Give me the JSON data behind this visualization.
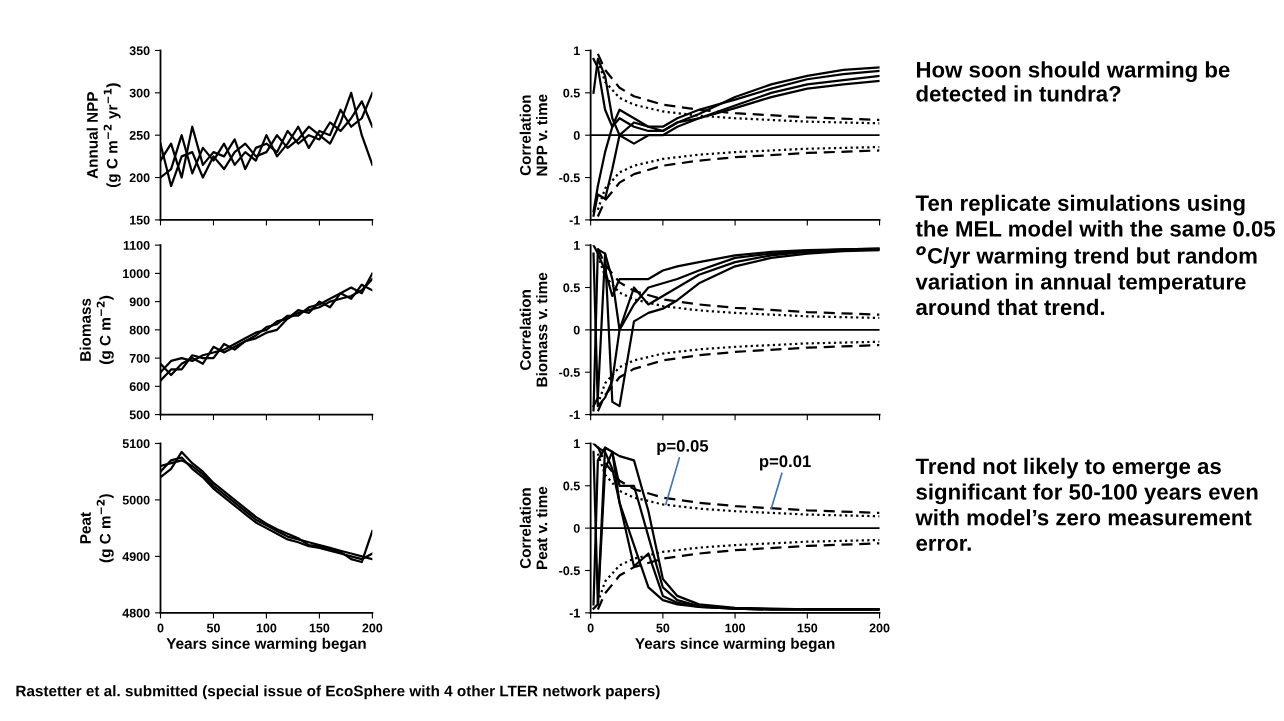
{
  "chart_data": [
    {
      "type": "line",
      "ylabel": "Annual NPP\n(g C m$^{−2}$ yr$^{−1}$)",
      "xlim": [
        0,
        200
      ],
      "xticks": [
        0,
        50,
        100,
        150,
        200
      ],
      "ylim": [
        150,
        350
      ],
      "yticks": [
        150,
        200,
        250,
        300,
        350
      ],
      "tick_labels": "y",
      "grid": false,
      "legend": false,
      "marker": "none",
      "series": [
        {
          "color": "#000000",
          "x": [
            0,
            10,
            20,
            30,
            40,
            50,
            60,
            70,
            80,
            90,
            100,
            110,
            120,
            130,
            140,
            150,
            160,
            170,
            180,
            190,
            200
          ],
          "values": [
            220,
            240,
            200,
            260,
            215,
            230,
            225,
            245,
            210,
            235,
            240,
            230,
            255,
            240,
            250,
            245,
            265,
            255,
            270,
            290,
            260
          ]
        },
        {
          "color": "#000000",
          "x": [
            0,
            10,
            20,
            30,
            40,
            50,
            60,
            70,
            80,
            90,
            100,
            110,
            120,
            130,
            140,
            150,
            160,
            170,
            180,
            190,
            200
          ],
          "values": [
            200,
            210,
            250,
            205,
            235,
            220,
            240,
            215,
            230,
            220,
            250,
            225,
            240,
            260,
            235,
            255,
            250,
            280,
            260,
            270,
            300
          ]
        },
        {
          "color": "#000000",
          "x": [
            0,
            10,
            20,
            30,
            40,
            50,
            60,
            70,
            80,
            90,
            100,
            110,
            120,
            130,
            140,
            150,
            160,
            170,
            180,
            190,
            200
          ],
          "values": [
            240,
            190,
            225,
            230,
            200,
            225,
            210,
            230,
            240,
            225,
            230,
            250,
            235,
            245,
            260,
            250,
            240,
            265,
            300,
            250,
            215
          ]
        }
      ]
    },
    {
      "type": "line",
      "ylabel": "Correlation\nNPP v. time",
      "ref_lines": [
        {
          "axis": "y",
          "value": 0,
          "color": "#000000"
        }
      ],
      "xlim": [
        0,
        200
      ],
      "xticks": [
        0,
        50,
        100,
        150,
        200
      ],
      "ylim": [
        -1,
        1
      ],
      "yticks": [
        -1,
        -0.5,
        0,
        0.5,
        1
      ],
      "tick_labels": "y",
      "grid": false,
      "legend": false,
      "marker": "none",
      "series": [
        {
          "color": "#000000",
          "x": [
            2,
            5,
            10,
            15,
            20,
            30,
            40,
            50,
            60,
            75,
            100,
            125,
            150,
            175,
            200
          ],
          "values": [
            0.9,
            0.8,
            0.3,
            0.1,
            0.2,
            0.1,
            0.05,
            0.05,
            0.15,
            0.25,
            0.45,
            0.6,
            0.7,
            0.77,
            0.8
          ]
        },
        {
          "color": "#000000",
          "x": [
            2,
            5,
            10,
            15,
            20,
            30,
            40,
            50,
            60,
            75,
            100,
            125,
            150,
            175,
            200
          ],
          "values": [
            -0.9,
            -0.6,
            -0.2,
            0.1,
            0.3,
            0.2,
            0.1,
            0.1,
            0.2,
            0.3,
            0.42,
            0.55,
            0.66,
            0.72,
            0.76
          ]
        },
        {
          "color": "#000000",
          "x": [
            2,
            5,
            10,
            15,
            20,
            30,
            40,
            50,
            60,
            75,
            100,
            125,
            150,
            175,
            200
          ],
          "values": [
            0.5,
            0.9,
            0.7,
            0.2,
            0.0,
            -0.1,
            0.0,
            0.0,
            0.1,
            0.2,
            0.35,
            0.5,
            0.6,
            0.65,
            0.7
          ]
        },
        {
          "color": "#000000",
          "x": [
            2,
            5,
            10,
            15,
            20,
            30,
            40,
            50,
            60,
            75,
            100,
            125,
            150,
            175,
            200
          ],
          "values": [
            -0.95,
            -0.7,
            -0.75,
            -0.4,
            0.0,
            0.15,
            0.1,
            0.05,
            0.15,
            0.2,
            0.32,
            0.45,
            0.55,
            0.6,
            0.64
          ]
        },
        {
          "color": "#000000",
          "line_style": "dotted",
          "x": [
            5,
            10,
            20,
            30,
            50,
            75,
            100,
            150,
            200
          ],
          "values": [
            0.88,
            0.63,
            0.44,
            0.36,
            0.28,
            0.23,
            0.2,
            0.16,
            0.14
          ]
        },
        {
          "color": "#000000",
          "line_style": "dashed",
          "x": [
            5,
            10,
            20,
            30,
            50,
            75,
            100,
            150,
            200
          ],
          "values": [
            0.96,
            0.77,
            0.56,
            0.46,
            0.36,
            0.3,
            0.26,
            0.21,
            0.18
          ]
        },
        {
          "color": "#000000",
          "line_style": "dotted",
          "x": [
            5,
            10,
            20,
            30,
            50,
            75,
            100,
            150,
            200
          ],
          "values": [
            -0.88,
            -0.63,
            -0.44,
            -0.36,
            -0.28,
            -0.23,
            -0.2,
            -0.16,
            -0.14
          ]
        },
        {
          "color": "#000000",
          "line_style": "dashed",
          "x": [
            5,
            10,
            20,
            30,
            50,
            75,
            100,
            150,
            200
          ],
          "values": [
            -0.96,
            -0.77,
            -0.56,
            -0.46,
            -0.36,
            -0.3,
            -0.26,
            -0.21,
            -0.18
          ]
        }
      ]
    },
    {
      "type": "line",
      "ylabel": "Biomass\n(g C m$^{−2}$)",
      "xlim": [
        0,
        200
      ],
      "xticks": [
        0,
        50,
        100,
        150,
        200
      ],
      "ylim": [
        500,
        1100
      ],
      "yticks": [
        500,
        600,
        700,
        800,
        900,
        1000,
        1100
      ],
      "tick_labels": "y",
      "grid": false,
      "legend": false,
      "marker": "none",
      "series": [
        {
          "color": "#000000",
          "x": [
            0,
            10,
            20,
            30,
            40,
            50,
            60,
            70,
            80,
            90,
            100,
            110,
            120,
            130,
            140,
            150,
            160,
            170,
            180,
            190,
            200
          ],
          "values": [
            650,
            690,
            700,
            690,
            710,
            720,
            730,
            750,
            770,
            790,
            800,
            830,
            840,
            860,
            870,
            880,
            900,
            910,
            920,
            940,
            980
          ]
        },
        {
          "color": "#000000",
          "x": [
            0,
            10,
            20,
            30,
            40,
            50,
            60,
            70,
            80,
            90,
            100,
            110,
            120,
            130,
            140,
            150,
            160,
            170,
            180,
            190,
            200
          ],
          "values": [
            680,
            640,
            680,
            700,
            680,
            740,
            720,
            740,
            760,
            780,
            810,
            820,
            850,
            850,
            880,
            890,
            910,
            930,
            950,
            930,
            1000
          ]
        },
        {
          "color": "#000000",
          "x": [
            0,
            10,
            20,
            30,
            40,
            50,
            60,
            70,
            80,
            90,
            100,
            110,
            120,
            130,
            140,
            150,
            160,
            170,
            180,
            190,
            200
          ],
          "values": [
            620,
            660,
            660,
            710,
            700,
            700,
            750,
            730,
            760,
            770,
            790,
            800,
            840,
            870,
            860,
            900,
            880,
            930,
            910,
            960,
            940
          ]
        }
      ]
    },
    {
      "type": "line",
      "ylabel": "Correlation\nBiomass v. time",
      "ref_lines": [
        {
          "axis": "y",
          "value": 0,
          "color": "#000000"
        }
      ],
      "xlim": [
        0,
        200
      ],
      "xticks": [
        0,
        50,
        100,
        150,
        200
      ],
      "ylim": [
        -1,
        1
      ],
      "yticks": [
        -1,
        -0.5,
        0,
        0.5,
        1
      ],
      "tick_labels": "y",
      "grid": false,
      "legend": false,
      "marker": "none",
      "series": [
        {
          "color": "#000000",
          "x": [
            2,
            5,
            10,
            15,
            20,
            30,
            40,
            50,
            60,
            75,
            100,
            125,
            150,
            175,
            200
          ],
          "values": [
            1.0,
            0.9,
            0.7,
            0.4,
            0.6,
            0.6,
            0.6,
            0.7,
            0.75,
            0.8,
            0.88,
            0.92,
            0.94,
            0.95,
            0.96
          ]
        },
        {
          "color": "#000000",
          "x": [
            2,
            5,
            10,
            15,
            20,
            30,
            40,
            50,
            60,
            75,
            100,
            125,
            150,
            175,
            200
          ],
          "values": [
            -0.9,
            -0.8,
            0.9,
            0.6,
            0.0,
            0.3,
            0.5,
            0.55,
            0.6,
            0.7,
            0.85,
            0.9,
            0.93,
            0.95,
            0.96
          ]
        },
        {
          "color": "#000000",
          "x": [
            2,
            5,
            10,
            15,
            20,
            30,
            40,
            50,
            60,
            75,
            100,
            125,
            150,
            175,
            200
          ],
          "values": [
            0.9,
            -0.9,
            -0.8,
            -0.6,
            0.0,
            0.5,
            0.3,
            0.4,
            0.5,
            0.65,
            0.8,
            0.88,
            0.92,
            0.94,
            0.95
          ]
        },
        {
          "color": "#000000",
          "x": [
            2,
            5,
            10,
            15,
            20,
            30,
            40,
            50,
            60,
            75,
            100,
            125,
            150,
            175,
            200
          ],
          "values": [
            -0.95,
            0.95,
            0.9,
            -0.85,
            -0.9,
            0.1,
            0.2,
            0.25,
            0.35,
            0.55,
            0.75,
            0.85,
            0.9,
            0.93,
            0.94
          ]
        },
        {
          "color": "#000000",
          "line_style": "dotted",
          "x": [
            5,
            10,
            20,
            30,
            50,
            75,
            100,
            150,
            200
          ],
          "values": [
            0.88,
            0.63,
            0.44,
            0.36,
            0.28,
            0.23,
            0.2,
            0.16,
            0.14
          ]
        },
        {
          "color": "#000000",
          "line_style": "dashed",
          "x": [
            5,
            10,
            20,
            30,
            50,
            75,
            100,
            150,
            200
          ],
          "values": [
            0.96,
            0.77,
            0.56,
            0.46,
            0.36,
            0.3,
            0.26,
            0.21,
            0.18
          ]
        },
        {
          "color": "#000000",
          "line_style": "dotted",
          "x": [
            5,
            10,
            20,
            30,
            50,
            75,
            100,
            150,
            200
          ],
          "values": [
            -0.88,
            -0.63,
            -0.44,
            -0.36,
            -0.28,
            -0.23,
            -0.2,
            -0.16,
            -0.14
          ]
        },
        {
          "color": "#000000",
          "line_style": "dashed",
          "x": [
            5,
            10,
            20,
            30,
            50,
            75,
            100,
            150,
            200
          ],
          "values": [
            -0.96,
            -0.77,
            -0.56,
            -0.46,
            -0.36,
            -0.3,
            -0.26,
            -0.21,
            -0.18
          ]
        }
      ]
    },
    {
      "type": "line",
      "ylabel": "Peat\n(g C m$^{−2}$)",
      "xlabel": "Years since warming began",
      "xlim": [
        0,
        200
      ],
      "xticks": [
        0,
        50,
        100,
        150,
        200
      ],
      "ylim": [
        4800,
        5100
      ],
      "yticks": [
        4800,
        4900,
        5000,
        5100
      ],
      "grid": false,
      "legend": false,
      "marker": "none",
      "series": [
        {
          "color": "#000000",
          "x": [
            0,
            10,
            20,
            30,
            40,
            50,
            60,
            70,
            80,
            90,
            100,
            110,
            120,
            130,
            140,
            150,
            160,
            170,
            180,
            190,
            200
          ],
          "values": [
            5060,
            5065,
            5070,
            5060,
            5045,
            5025,
            5010,
            4995,
            4980,
            4965,
            4955,
            4945,
            4935,
            4930,
            4925,
            4920,
            4915,
            4910,
            4905,
            4900,
            4895
          ]
        },
        {
          "color": "#000000",
          "x": [
            0,
            10,
            20,
            30,
            40,
            50,
            60,
            70,
            80,
            90,
            100,
            110,
            120,
            130,
            140,
            150,
            160,
            170,
            180,
            190,
            200
          ],
          "values": [
            5050,
            5070,
            5075,
            5055,
            5040,
            5020,
            5005,
            4990,
            4975,
            4960,
            4950,
            4940,
            4930,
            4925,
            4918,
            4915,
            4910,
            4905,
            4900,
            4895,
            4905
          ]
        },
        {
          "color": "#000000",
          "x": [
            0,
            10,
            20,
            30,
            40,
            50,
            60,
            70,
            80,
            90,
            100,
            110,
            120,
            130,
            140,
            150,
            160,
            170,
            180,
            190,
            200
          ],
          "values": [
            5040,
            5055,
            5085,
            5065,
            5050,
            5030,
            5015,
            5000,
            4985,
            4970,
            4958,
            4948,
            4940,
            4932,
            4920,
            4918,
            4912,
            4908,
            4895,
            4890,
            4945
          ]
        }
      ]
    },
    {
      "type": "line",
      "ylabel": "Correlation\nPeat v. time",
      "ref_lines": [
        {
          "axis": "y",
          "value": 0,
          "color": "#000000"
        }
      ],
      "xlabel": "Years since warming began",
      "xlim": [
        0,
        200
      ],
      "xticks": [
        0,
        50,
        100,
        150,
        200
      ],
      "ylim": [
        -1,
        1
      ],
      "yticks": [
        -1,
        -0.5,
        0,
        0.5,
        1
      ],
      "grid": false,
      "legend": false,
      "marker": "none",
      "annotations": [
        {
          "text": "p=0.05",
          "x": 52,
          "y": 0.28
        },
        {
          "text": "p=0.01",
          "x": 125,
          "y": 0.23
        }
      ],
      "series": [
        {
          "color": "#000000",
          "x": [
            2,
            5,
            10,
            15,
            20,
            30,
            40,
            50,
            60,
            75,
            100,
            125,
            150,
            175,
            200
          ],
          "values": [
            1.0,
            0.95,
            0.9,
            0.7,
            0.3,
            -0.2,
            -0.7,
            -0.85,
            -0.9,
            -0.93,
            -0.95,
            -0.96,
            -0.96,
            -0.96,
            -0.96
          ]
        },
        {
          "color": "#000000",
          "x": [
            2,
            5,
            10,
            15,
            20,
            30,
            40,
            50,
            60,
            75,
            100,
            125,
            150,
            175,
            200
          ],
          "values": [
            -0.9,
            0.8,
            0.95,
            0.9,
            0.85,
            0.8,
            0.2,
            -0.6,
            -0.8,
            -0.9,
            -0.94,
            -0.95,
            -0.96,
            -0.96,
            -0.96
          ]
        },
        {
          "color": "#000000",
          "x": [
            2,
            5,
            10,
            15,
            20,
            30,
            40,
            50,
            60,
            75,
            100,
            125,
            150,
            175,
            200
          ],
          "values": [
            0.9,
            -0.9,
            0.7,
            0.9,
            0.5,
            0.5,
            -0.1,
            -0.7,
            -0.85,
            -0.92,
            -0.95,
            -0.96,
            -0.96,
            -0.96,
            -0.96
          ]
        },
        {
          "color": "#000000",
          "x": [
            2,
            5,
            10,
            15,
            20,
            30,
            40,
            50,
            60,
            75,
            100,
            125,
            150,
            175,
            200
          ],
          "values": [
            -0.95,
            -0.9,
            0.95,
            0.9,
            0.3,
            -0.45,
            -0.3,
            -0.8,
            -0.88,
            -0.93,
            -0.95,
            -0.96,
            -0.96,
            -0.96,
            -0.96
          ]
        },
        {
          "color": "#000000",
          "line_style": "dotted",
          "x": [
            5,
            10,
            20,
            30,
            50,
            75,
            100,
            150,
            200
          ],
          "values": [
            0.88,
            0.63,
            0.44,
            0.36,
            0.28,
            0.23,
            0.2,
            0.16,
            0.14
          ]
        },
        {
          "color": "#000000",
          "line_style": "dashed",
          "x": [
            5,
            10,
            20,
            30,
            50,
            75,
            100,
            150,
            200
          ],
          "values": [
            0.96,
            0.77,
            0.56,
            0.46,
            0.36,
            0.3,
            0.26,
            0.21,
            0.18
          ]
        },
        {
          "color": "#000000",
          "line_style": "dotted",
          "x": [
            5,
            10,
            20,
            30,
            50,
            75,
            100,
            150,
            200
          ],
          "values": [
            -0.88,
            -0.63,
            -0.44,
            -0.36,
            -0.28,
            -0.23,
            -0.2,
            -0.16,
            -0.14
          ]
        },
        {
          "color": "#000000",
          "line_style": "dashed",
          "x": [
            5,
            10,
            20,
            30,
            50,
            75,
            100,
            150,
            200
          ],
          "values": [
            -0.96,
            -0.77,
            -0.56,
            -0.46,
            -0.36,
            -0.3,
            -0.26,
            -0.21,
            -0.18
          ]
        }
      ]
    },
    {
      "type": "other",
      "title": "How soon should warming be detected in tundra?",
      "annotations": [
        "Ten replicate simulations using the MEL model with the same 0.05 $^{o}$C/yr warming trend but random variation in annual temperature around that trend.",
        "Trend not likely to emerge as significant for 50-100 years even with model’s zero measurement error.",
        "Rastetter et al. submitted (special issue of EcoSphere with 4 other LTER network papers)"
      ]
    }
  ]
}
